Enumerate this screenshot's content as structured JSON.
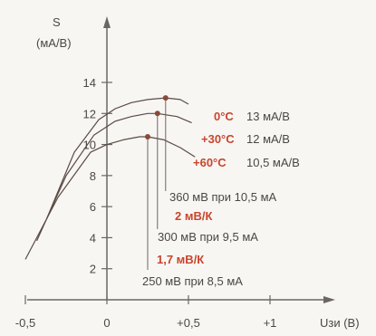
{
  "chart_data": {
    "type": "line",
    "ylabel": "S",
    "yunit": "(мА/В)",
    "xlabel": "Uзи (В)",
    "xlim": [
      -0.55,
      1.55
    ],
    "ylim": [
      0,
      15.5
    ],
    "xticks": [
      {
        "value": -0.5,
        "label": "-0,5"
      },
      {
        "value": 0,
        "label": "0"
      },
      {
        "value": 0.5,
        "label": "+0,5"
      },
      {
        "value": 1.0,
        "label": "+1"
      }
    ],
    "yticks": [
      {
        "value": 2,
        "label": "2"
      },
      {
        "value": 4,
        "label": "4"
      },
      {
        "value": 6,
        "label": "6"
      },
      {
        "value": 8,
        "label": "8"
      },
      {
        "value": 10,
        "label": "10"
      },
      {
        "value": 12,
        "label": "12"
      },
      {
        "value": 14,
        "label": "14"
      }
    ],
    "series": [
      {
        "name": "0°C",
        "value_label": "13 мА/В",
        "x": [
          -0.37,
          -0.2,
          -0.05,
          0.05,
          0.15,
          0.25,
          0.36,
          0.45,
          0.5
        ],
        "y": [
          5.2,
          9.5,
          11.6,
          12.3,
          12.7,
          12.9,
          13.0,
          12.9,
          12.6
        ]
      },
      {
        "name": "+30°C",
        "value_label": "12 мА/В",
        "x": [
          -0.43,
          -0.25,
          -0.08,
          0.05,
          0.15,
          0.25,
          0.31,
          0.43,
          0.52
        ],
        "y": [
          3.8,
          8.0,
          10.6,
          11.5,
          11.8,
          12.0,
          12.0,
          11.8,
          11.4
        ]
      },
      {
        "name": "+60°C",
        "value_label": "10,5 мА/В",
        "x": [
          -0.5,
          -0.3,
          -0.1,
          0.0,
          0.1,
          0.2,
          0.25,
          0.35,
          0.45,
          0.54
        ],
        "y": [
          2.6,
          6.6,
          9.5,
          10.0,
          10.3,
          10.5,
          10.5,
          10.3,
          9.8,
          9.2
        ]
      }
    ],
    "peaks": [
      {
        "x": 0.36,
        "y": 13.0,
        "label": "360 мВ  при 10,5 мА"
      },
      {
        "x": 0.31,
        "y": 12.0,
        "label": "300 мВ  при 9,5 мА"
      },
      {
        "x": 0.25,
        "y": 10.5,
        "label": "250 мВ  при 8,5 мА"
      }
    ],
    "coefficients": [
      "2 мВ/К",
      "1,7 мВ/К"
    ]
  }
}
